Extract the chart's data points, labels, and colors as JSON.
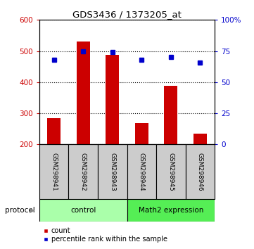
{
  "title": "GDS3436 / 1373205_at",
  "samples": [
    "GSM298941",
    "GSM298942",
    "GSM298943",
    "GSM298944",
    "GSM298945",
    "GSM298946"
  ],
  "counts": [
    285,
    530,
    487,
    268,
    388,
    235
  ],
  "percentile_ranks": [
    68,
    75,
    74,
    68,
    70,
    66
  ],
  "groups": [
    {
      "label": "control",
      "color": "#aaffaa",
      "n_samples": 3
    },
    {
      "label": "Math2 expression",
      "color": "#55ee55",
      "n_samples": 3
    }
  ],
  "bar_color": "#cc0000",
  "dot_color": "#0000cc",
  "ylim_left": [
    200,
    600
  ],
  "ylim_right": [
    0,
    100
  ],
  "yticks_left": [
    200,
    300,
    400,
    500,
    600
  ],
  "yticks_right": [
    0,
    25,
    50,
    75,
    100
  ],
  "ytick_labels_right": [
    "0",
    "25",
    "50",
    "75",
    "100%"
  ],
  "label_bg_color": "#cccccc",
  "legend_count_label": "count",
  "legend_pct_label": "percentile rank within the sample",
  "protocol_label": "protocol"
}
